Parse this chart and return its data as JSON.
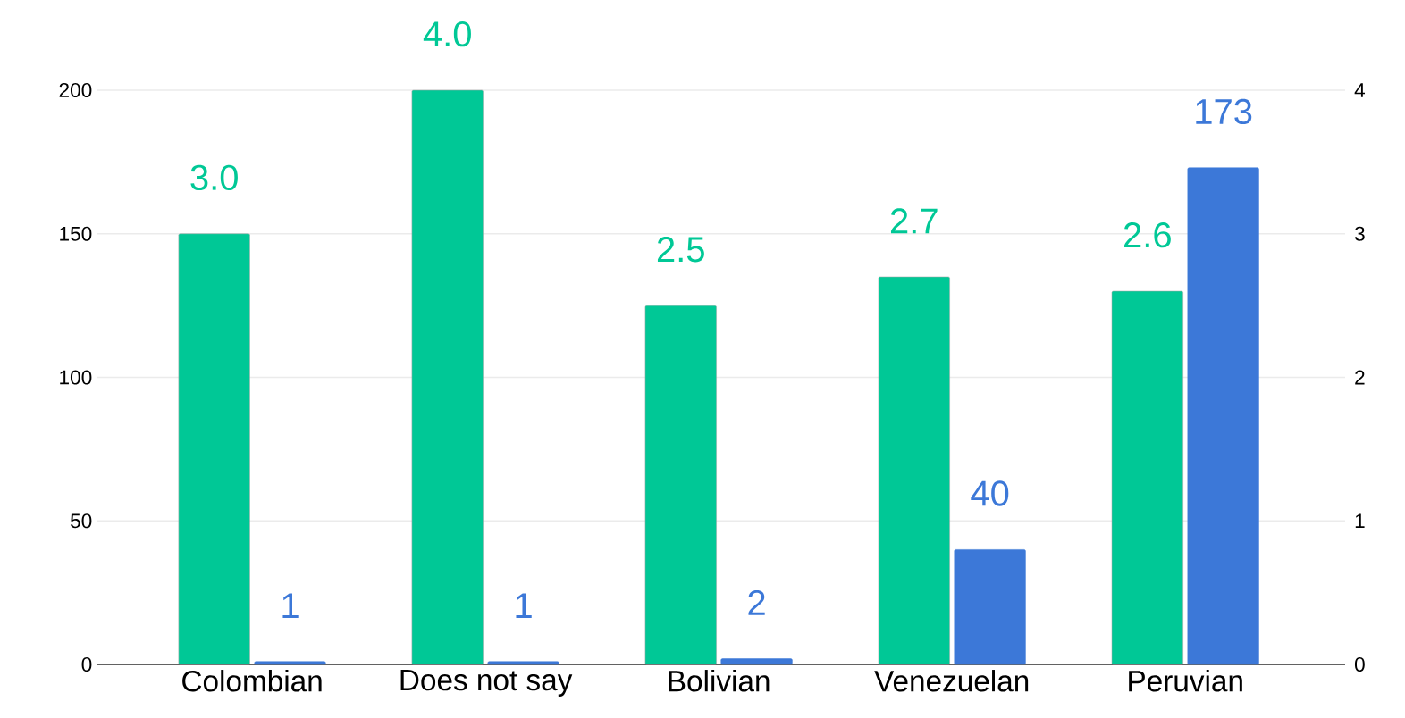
{
  "chart_data": {
    "type": "bar",
    "categories": [
      "Colombian",
      "Does not say",
      "Bolivian",
      "Venezuelan",
      "Peruvian"
    ],
    "series": [
      {
        "color": "#00c896",
        "axis": "y2",
        "values": [
          3.0,
          4.0,
          2.5,
          2.7,
          2.6
        ],
        "value_labels": [
          "3.0",
          "4.0",
          "2.5",
          "2.7",
          "2.6"
        ]
      },
      {
        "color": "#3c78d8",
        "values": [
          1,
          1,
          2,
          40,
          173
        ],
        "value_labels": [
          "1",
          "1",
          "2",
          "40",
          "173"
        ]
      }
    ],
    "ylim": [
      0,
      200
    ],
    "yticks": [
      0,
      50,
      100,
      150,
      200
    ],
    "y2lim": [
      0,
      4
    ],
    "y2ticks": [
      0,
      1,
      2,
      3,
      4
    ],
    "grid": "y"
  }
}
